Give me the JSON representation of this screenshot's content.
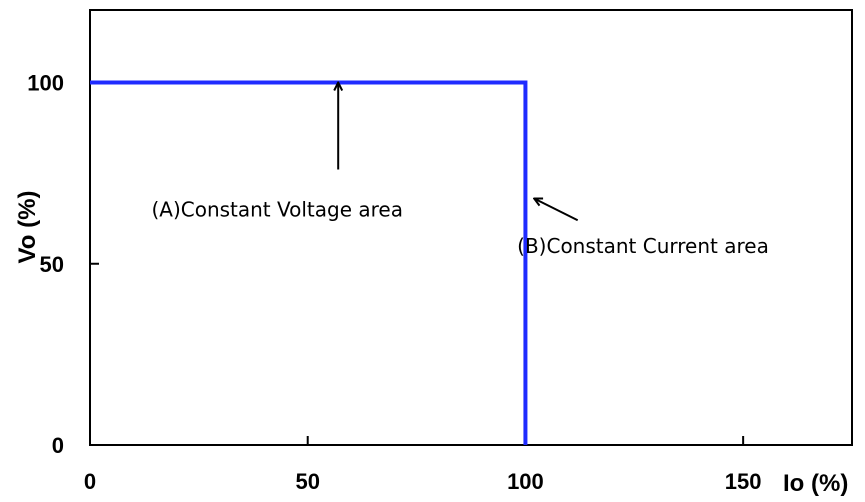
{
  "chart_data": {
    "type": "line",
    "xlabel": "Io (%)",
    "ylabel": "Vo (%)",
    "xlim": [
      0,
      175
    ],
    "ylim": [
      0,
      120
    ],
    "x_ticks": [
      0,
      50,
      100,
      150
    ],
    "y_ticks": [
      0,
      50,
      100
    ],
    "x_tick_labels": [
      "0",
      "50",
      "100",
      "150"
    ],
    "y_tick_labels": [
      "0",
      "50",
      "100"
    ],
    "grid": false,
    "series": [
      {
        "color": "#1f2bff",
        "points": [
          [
            0,
            100
          ],
          [
            100,
            100
          ],
          [
            100,
            0
          ]
        ]
      }
    ],
    "reference_line": {
      "y": 100,
      "x_start": 14,
      "x_end": 67,
      "style": "dashed",
      "color": "#000000"
    },
    "annotations": [
      {
        "text": "(A)Constant Voltage area",
        "arrow_to": [
          57,
          100
        ],
        "arrow_from": [
          57,
          76
        ],
        "text_at": [
          43,
          63
        ]
      },
      {
        "text": "(B)Constant Current area",
        "arrow_to": [
          102,
          68
        ],
        "arrow_from": [
          112,
          62
        ],
        "text_at": [
          127,
          53
        ]
      }
    ]
  }
}
